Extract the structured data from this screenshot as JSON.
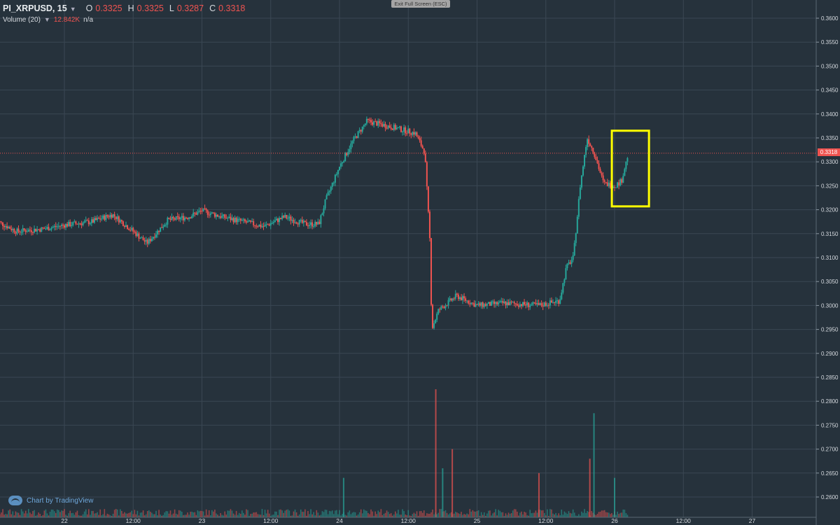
{
  "header": {
    "symbol": "PI_XRPUSD, 15",
    "open_label": "O",
    "open": "0.3325",
    "high_label": "H",
    "high": "0.3325",
    "low_label": "L",
    "low": "0.3287",
    "close_label": "C",
    "close": "0.3318",
    "volume_label": "Volume (20)",
    "volume_value": "12.842K",
    "volume_ma": "n/a"
  },
  "exit_fullscreen": "Exit Full Screen (ESC)",
  "branding": "Chart by TradingView",
  "price_tag": "0.3318",
  "colors": {
    "background": "#26323c",
    "up": "#26a69a",
    "down": "#ef5350",
    "highlight": "#ffff00",
    "grid": "#3a4753"
  },
  "chart_data": {
    "type": "candlestick",
    "timeframe": "15",
    "x_ticks": [
      "22",
      "12:00",
      "23",
      "12:00",
      "24",
      "12:00",
      "25",
      "12:00",
      "26",
      "12:00",
      "27"
    ],
    "y_ticks": [
      "0.3600",
      "0.3550",
      "0.3500",
      "0.3450",
      "0.3400",
      "0.3350",
      "0.3300",
      "0.3250",
      "0.3200",
      "0.3150",
      "0.3100",
      "0.3050",
      "0.3000",
      "0.2950",
      "0.2900",
      "0.2850",
      "0.2800",
      "0.2750",
      "0.2700",
      "0.2650",
      "0.2600"
    ],
    "ylim": [
      0.2575,
      0.3625
    ],
    "last_price": 0.3318,
    "close_path": [
      [
        21.5,
        0.3178
      ],
      [
        21.65,
        0.3155
      ],
      [
        21.85,
        0.316
      ],
      [
        22.0,
        0.3168
      ],
      [
        22.2,
        0.3175
      ],
      [
        22.35,
        0.319
      ],
      [
        22.5,
        0.3155
      ],
      [
        22.6,
        0.313
      ],
      [
        22.75,
        0.3178
      ],
      [
        22.9,
        0.3185
      ],
      [
        23.0,
        0.3198
      ],
      [
        23.15,
        0.3185
      ],
      [
        23.3,
        0.3175
      ],
      [
        23.45,
        0.3165
      ],
      [
        23.6,
        0.3185
      ],
      [
        23.75,
        0.317
      ],
      [
        23.85,
        0.317
      ],
      [
        23.9,
        0.322
      ],
      [
        24.0,
        0.329
      ],
      [
        24.1,
        0.3345
      ],
      [
        24.2,
        0.3385
      ],
      [
        24.35,
        0.3375
      ],
      [
        24.55,
        0.336
      ],
      [
        24.62,
        0.332
      ],
      [
        24.66,
        0.312
      ],
      [
        24.67,
        0.295
      ],
      [
        24.72,
        0.299
      ],
      [
        24.85,
        0.302
      ],
      [
        25.0,
        0.3
      ],
      [
        25.2,
        0.3005
      ],
      [
        25.45,
        0.3
      ],
      [
        25.6,
        0.301
      ],
      [
        25.65,
        0.308
      ],
      [
        25.7,
        0.31
      ],
      [
        25.75,
        0.325
      ],
      [
        25.8,
        0.335
      ],
      [
        25.85,
        0.332
      ],
      [
        25.92,
        0.3255
      ],
      [
        26.0,
        0.325
      ],
      [
        26.05,
        0.326
      ],
      [
        26.1,
        0.3318
      ]
    ],
    "volume_spikes": [
      [
        24.7,
        0.2825
      ],
      [
        24.75,
        0.266
      ],
      [
        24.82,
        0.27
      ],
      [
        25.85,
        0.2775
      ],
      [
        25.82,
        0.268
      ],
      [
        24.03,
        0.264
      ],
      [
        25.45,
        0.265
      ],
      [
        26.0,
        0.264
      ]
    ],
    "annotations": [
      {
        "type": "rectangle",
        "color": "#ffff00",
        "x_range": [
          25.98,
          26.25
        ],
        "y_range": [
          0.3207,
          0.3365
        ]
      }
    ]
  }
}
